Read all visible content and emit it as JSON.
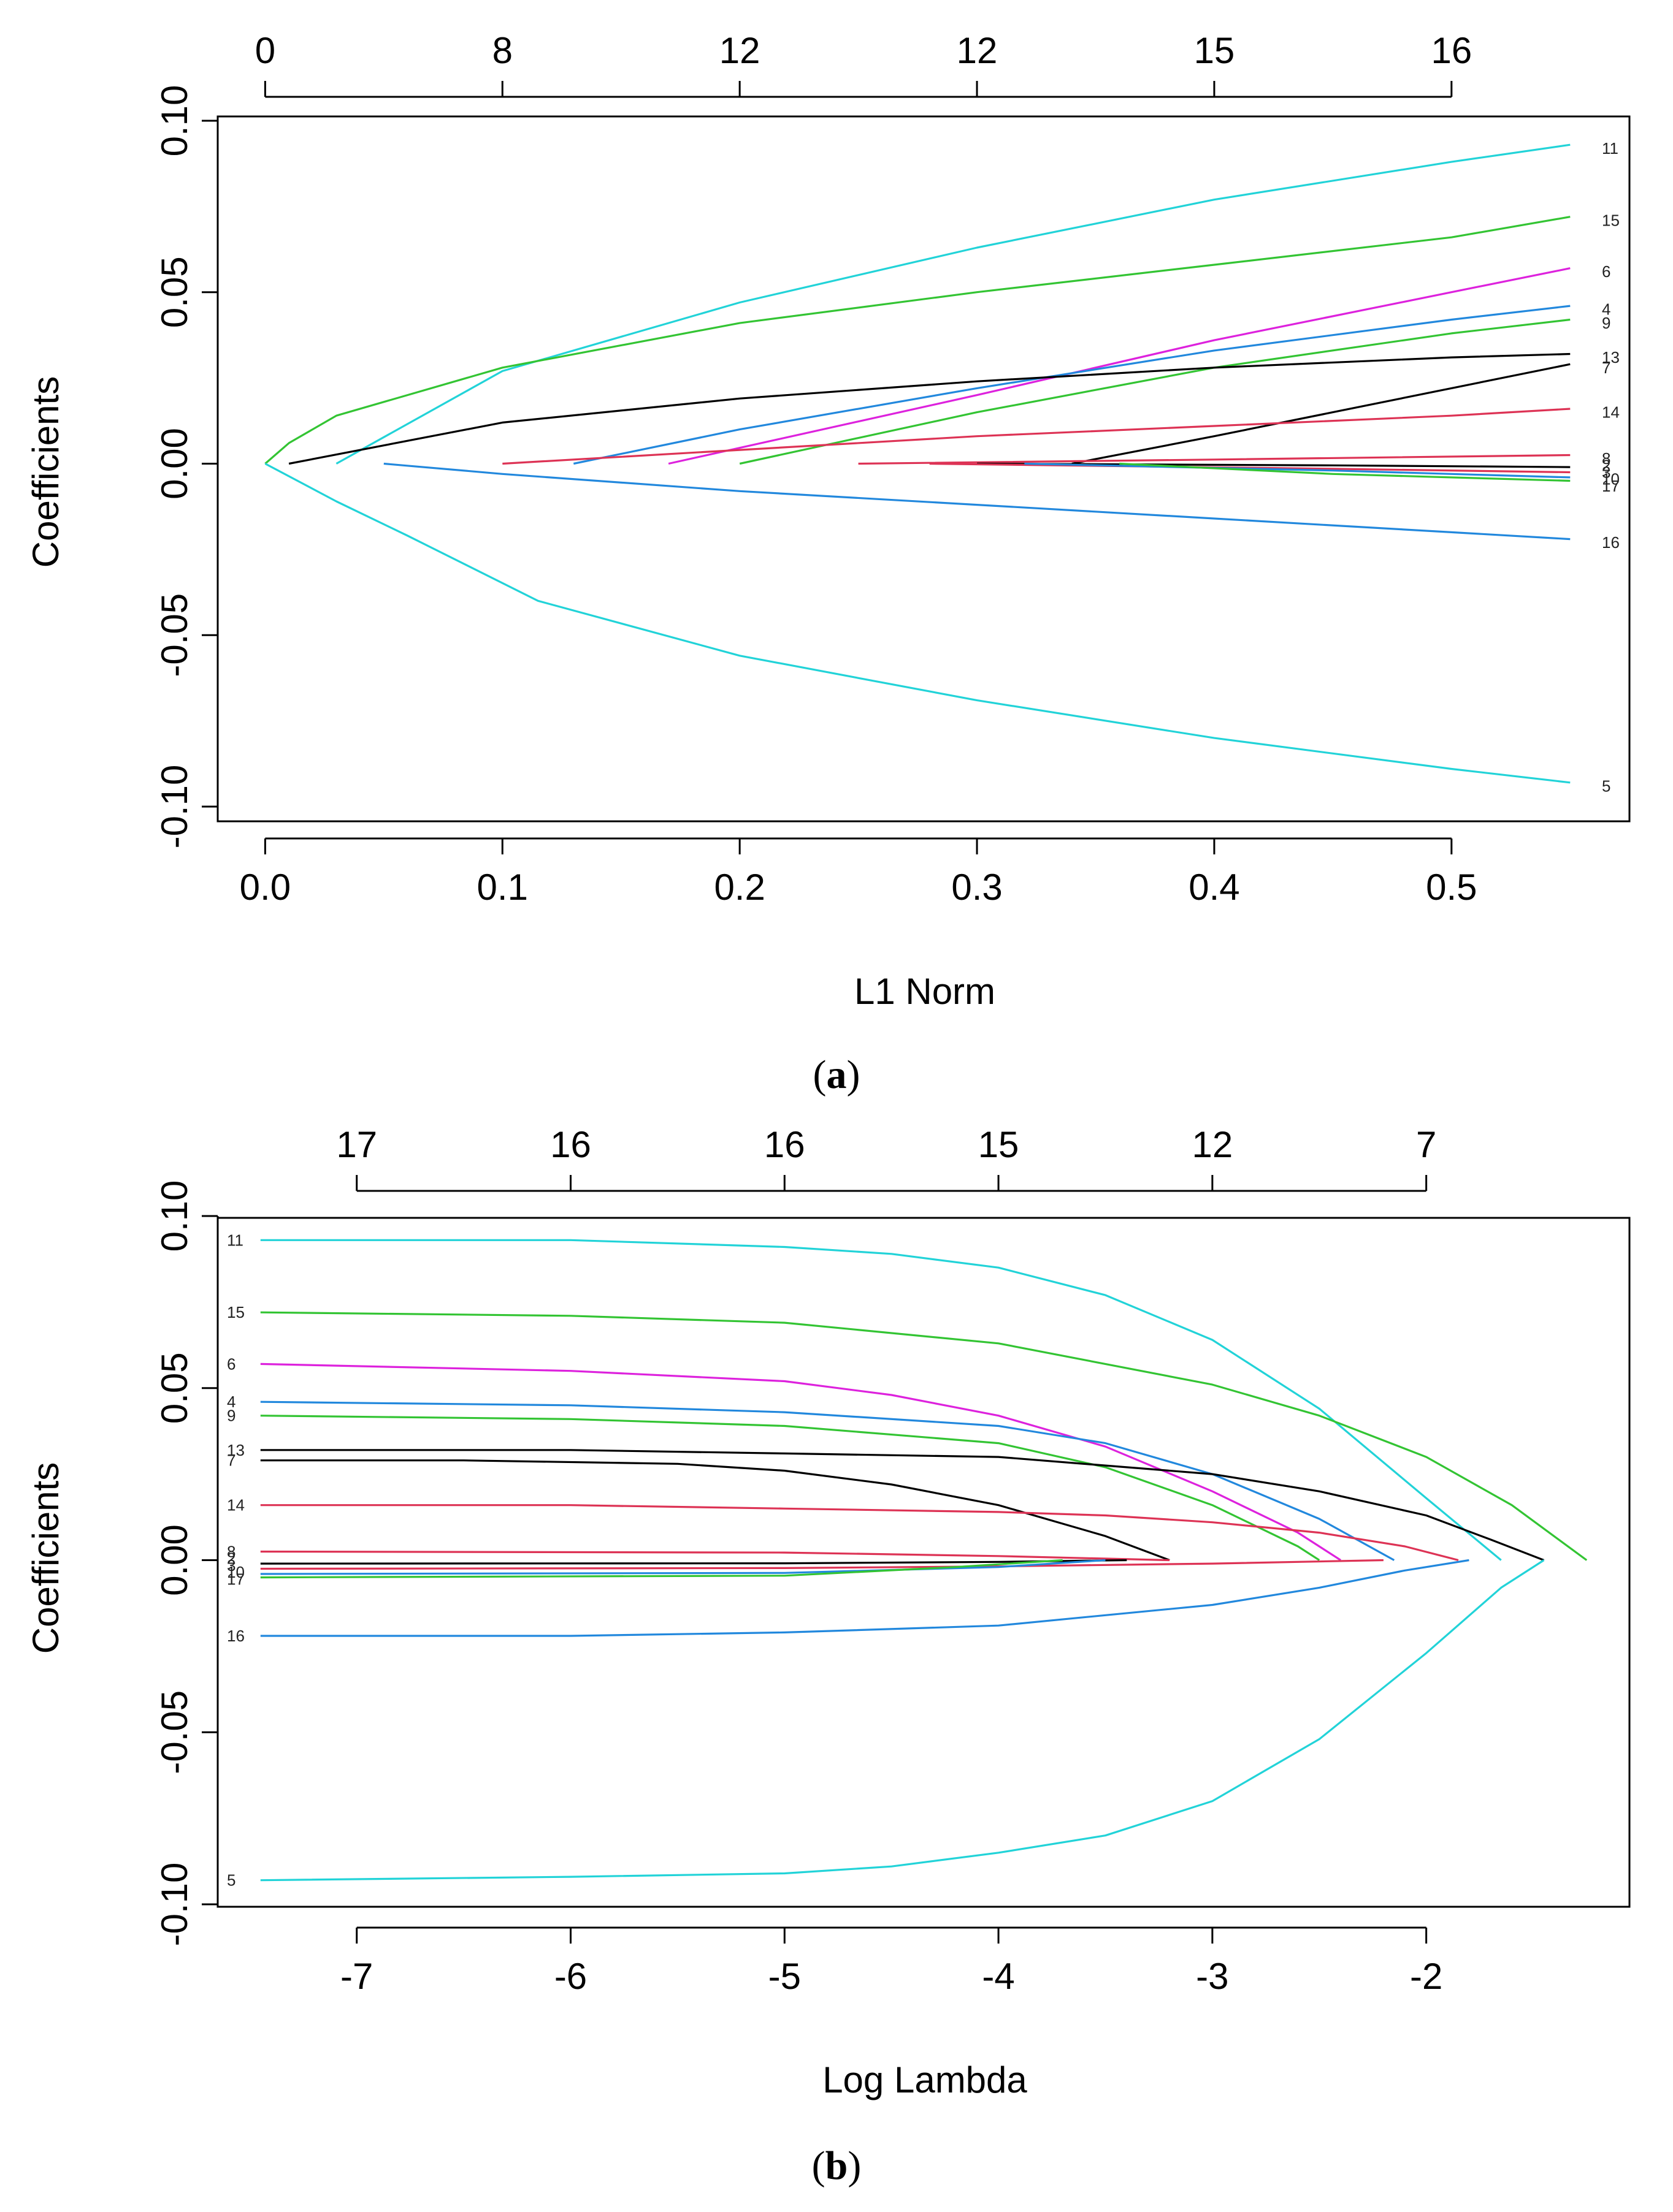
{
  "chart_data": [
    {
      "panel": "a",
      "caption": "(a)",
      "caption_letter": "a",
      "type": "line",
      "xlabel": "L1 Norm",
      "ylabel": "Coefficients",
      "xlim": [
        -0.02,
        0.575
      ],
      "ylim": [
        -0.1,
        0.1
      ],
      "x_ticks": [
        0.0,
        0.1,
        0.2,
        0.3,
        0.4,
        0.5
      ],
      "x_tick_labels": [
        "0.0",
        "0.1",
        "0.2",
        "0.3",
        "0.4",
        "0.5"
      ],
      "y_ticks": [
        0.1,
        0.05,
        0.0,
        -0.05,
        -0.1
      ],
      "y_tick_labels": [
        "0.10",
        "0.05",
        "0.00",
        "-0.05",
        "-0.10"
      ],
      "top_ticks": [
        0.0,
        0.1,
        0.2,
        0.3,
        0.4,
        0.5
      ],
      "top_tick_labels": [
        "0",
        "8",
        "12",
        "12",
        "15",
        "16"
      ],
      "labels_side": "right",
      "series": [
        {
          "name": "11",
          "color": "#22D3D8",
          "x": [
            0.03,
            0.1,
            0.2,
            0.3,
            0.4,
            0.5,
            0.55
          ],
          "y": [
            0.0,
            0.027,
            0.047,
            0.063,
            0.077,
            0.088,
            0.093
          ]
        },
        {
          "name": "15",
          "color": "#33C433",
          "x": [
            0.0,
            0.01,
            0.03,
            0.1,
            0.2,
            0.3,
            0.4,
            0.5,
            0.55
          ],
          "y": [
            0.0,
            0.006,
            0.014,
            0.028,
            0.041,
            0.05,
            0.058,
            0.066,
            0.072
          ]
        },
        {
          "name": "6",
          "color": "#DD22DD",
          "x": [
            0.17,
            0.3,
            0.4,
            0.5,
            0.55
          ],
          "y": [
            0.0,
            0.02,
            0.036,
            0.05,
            0.057
          ]
        },
        {
          "name": "4",
          "color": "#2288DD",
          "x": [
            0.13,
            0.2,
            0.3,
            0.4,
            0.5,
            0.55
          ],
          "y": [
            0.0,
            0.01,
            0.022,
            0.033,
            0.042,
            0.046
          ]
        },
        {
          "name": "9",
          "color": "#33C433",
          "x": [
            0.2,
            0.3,
            0.4,
            0.5,
            0.55
          ],
          "y": [
            0.0,
            0.015,
            0.028,
            0.038,
            0.042
          ]
        },
        {
          "name": "13",
          "color": "#000000",
          "x": [
            0.01,
            0.1,
            0.2,
            0.3,
            0.4,
            0.5,
            0.55
          ],
          "y": [
            0.0,
            0.012,
            0.019,
            0.024,
            0.028,
            0.031,
            0.032
          ]
        },
        {
          "name": "7",
          "color": "#000000",
          "x": [
            0.34,
            0.4,
            0.45,
            0.5,
            0.55
          ],
          "y": [
            0.0,
            0.008,
            0.015,
            0.022,
            0.029
          ]
        },
        {
          "name": "14",
          "color": "#DD3355",
          "x": [
            0.1,
            0.2,
            0.3,
            0.4,
            0.5,
            0.55
          ],
          "y": [
            0.0,
            0.004,
            0.008,
            0.011,
            0.014,
            0.016
          ]
        },
        {
          "name": "8",
          "color": "#DD3355",
          "x": [
            0.25,
            0.4,
            0.55
          ],
          "y": [
            0.0,
            0.0012,
            0.0025
          ]
        },
        {
          "name": "2",
          "color": "#000000",
          "x": [
            0.3,
            0.45,
            0.55
          ],
          "y": [
            0.0,
            -0.0005,
            -0.001
          ]
        },
        {
          "name": "3",
          "color": "#DD3355",
          "x": [
            0.28,
            0.45,
            0.55
          ],
          "y": [
            0.0,
            -0.0015,
            -0.0025
          ]
        },
        {
          "name": "10",
          "color": "#2288DD",
          "x": [
            0.32,
            0.45,
            0.55
          ],
          "y": [
            0.0,
            -0.002,
            -0.004
          ]
        },
        {
          "name": "17",
          "color": "#33C433",
          "x": [
            0.36,
            0.45,
            0.55
          ],
          "y": [
            0.0,
            -0.003,
            -0.005
          ]
        },
        {
          "name": "16",
          "color": "#2288DD",
          "x": [
            0.05,
            0.1,
            0.2,
            0.3,
            0.4,
            0.5,
            0.55
          ],
          "y": [
            0.0,
            -0.003,
            -0.008,
            -0.012,
            -0.016,
            -0.02,
            -0.022
          ]
        },
        {
          "name": "5",
          "color": "#22D3D8",
          "x": [
            0.0,
            0.03,
            0.06,
            0.115,
            0.2,
            0.3,
            0.4,
            0.5,
            0.55
          ],
          "y": [
            0.0,
            -0.011,
            -0.021,
            -0.04,
            -0.056,
            -0.069,
            -0.08,
            -0.089,
            -0.093
          ]
        }
      ],
      "label_marks": [
        {
          "name": "11",
          "y": 0.092
        },
        {
          "name": "15",
          "y": 0.071
        },
        {
          "name": "6",
          "y": 0.056
        },
        {
          "name": "4",
          "y": 0.045
        },
        {
          "name": "9",
          "y": 0.041
        },
        {
          "name": "13",
          "y": 0.031
        },
        {
          "name": "7",
          "y": 0.028
        },
        {
          "name": "14",
          "y": 0.015
        },
        {
          "name": "8",
          "y": 0.0015
        },
        {
          "name": "2",
          "y": -0.0005
        },
        {
          "name": "3",
          "y": -0.0025
        },
        {
          "name": "10",
          "y": -0.0045
        },
        {
          "name": "17",
          "y": -0.0065
        },
        {
          "name": "16",
          "y": -0.023
        },
        {
          "name": "5",
          "y": -0.094
        }
      ]
    },
    {
      "panel": "b",
      "caption": "(b)",
      "caption_letter": "b",
      "type": "line",
      "xlabel": "Log Lambda",
      "ylabel": "Coefficients",
      "xlim": [
        -7.65,
        -1.05
      ],
      "ylim": [
        -0.1,
        0.1
      ],
      "x_ticks": [
        -7,
        -6,
        -5,
        -4,
        -3,
        -2
      ],
      "x_tick_labels": [
        "-7",
        "-6",
        "-5",
        "-4",
        "-3",
        "-2"
      ],
      "y_ticks": [
        0.1,
        0.05,
        0.0,
        -0.05,
        -0.1
      ],
      "y_tick_labels": [
        "0.10",
        "0.05",
        "0.00",
        "-0.05",
        "-0.10"
      ],
      "top_ticks": [
        -7,
        -6,
        -5,
        -4,
        -3,
        -2
      ],
      "top_tick_labels": [
        "17",
        "16",
        "16",
        "15",
        "12",
        "7"
      ],
      "labels_side": "left",
      "series": [
        {
          "name": "11",
          "color": "#22D3D8",
          "x": [
            -7.45,
            -6,
            -5,
            -4.5,
            -4,
            -3.5,
            -3,
            -2.5,
            -2,
            -1.65
          ],
          "y": [
            0.093,
            0.093,
            0.091,
            0.089,
            0.085,
            0.077,
            0.064,
            0.044,
            0.018,
            0.0
          ]
        },
        {
          "name": "15",
          "color": "#33C433",
          "x": [
            -7.45,
            -6,
            -5,
            -4,
            -3,
            -2.5,
            -2,
            -1.6,
            -1.25
          ],
          "y": [
            0.072,
            0.071,
            0.069,
            0.063,
            0.051,
            0.042,
            0.03,
            0.016,
            0.0
          ]
        },
        {
          "name": "6",
          "color": "#DD22DD",
          "x": [
            -7.45,
            -6,
            -5,
            -4.5,
            -4,
            -3.5,
            -3,
            -2.6,
            -2.4
          ],
          "y": [
            0.057,
            0.055,
            0.052,
            0.048,
            0.042,
            0.033,
            0.02,
            0.008,
            0.0
          ]
        },
        {
          "name": "4",
          "color": "#2288DD",
          "x": [
            -7.45,
            -6,
            -5,
            -4,
            -3.5,
            -3,
            -2.5,
            -2.15
          ],
          "y": [
            0.046,
            0.045,
            0.043,
            0.039,
            0.034,
            0.025,
            0.012,
            0.0
          ]
        },
        {
          "name": "9",
          "color": "#33C433",
          "x": [
            -7.45,
            -6,
            -5,
            -4,
            -3.5,
            -3,
            -2.6,
            -2.5
          ],
          "y": [
            0.042,
            0.041,
            0.039,
            0.034,
            0.027,
            0.016,
            0.004,
            0.0
          ]
        },
        {
          "name": "13",
          "color": "#000000",
          "x": [
            -7.45,
            -6,
            -5,
            -4,
            -3,
            -2.5,
            -2,
            -1.7,
            -1.45
          ],
          "y": [
            0.032,
            0.032,
            0.031,
            0.03,
            0.025,
            0.02,
            0.013,
            0.006,
            0.0
          ]
        },
        {
          "name": "7",
          "color": "#000000",
          "x": [
            -7.45,
            -6.5,
            -5.5,
            -5,
            -4.5,
            -4,
            -3.5,
            -3.2
          ],
          "y": [
            0.029,
            0.029,
            0.028,
            0.026,
            0.022,
            0.016,
            0.007,
            0.0
          ]
        },
        {
          "name": "14",
          "color": "#DD3355",
          "x": [
            -7.45,
            -6,
            -5,
            -4,
            -3.5,
            -3,
            -2.5,
            -2.1,
            -1.85
          ],
          "y": [
            0.016,
            0.016,
            0.015,
            0.014,
            0.013,
            0.011,
            0.008,
            0.004,
            0.0
          ]
        },
        {
          "name": "8",
          "color": "#DD3355",
          "x": [
            -7.45,
            -5,
            -4,
            -3.2
          ],
          "y": [
            0.0025,
            0.0022,
            0.0012,
            0.0
          ]
        },
        {
          "name": "2",
          "color": "#000000",
          "x": [
            -7.45,
            -5,
            -4,
            -3.4
          ],
          "y": [
            -0.001,
            -0.0009,
            -0.0005,
            0.0
          ]
        },
        {
          "name": "3",
          "color": "#DD3355",
          "x": [
            -7.45,
            -5,
            -4,
            -3,
            -2.2
          ],
          "y": [
            -0.0025,
            -0.0023,
            -0.0018,
            -0.001,
            0.0
          ]
        },
        {
          "name": "10",
          "color": "#2288DD",
          "x": [
            -7.45,
            -5,
            -4,
            -3.5
          ],
          "y": [
            -0.004,
            -0.0037,
            -0.002,
            0.0
          ]
        },
        {
          "name": "17",
          "color": "#33C433",
          "x": [
            -7.45,
            -5,
            -4.2,
            -3.7
          ],
          "y": [
            -0.005,
            -0.0045,
            -0.002,
            0.0
          ]
        },
        {
          "name": "16",
          "color": "#2288DD",
          "x": [
            -7.45,
            -6,
            -5,
            -4,
            -3.5,
            -3,
            -2.5,
            -2.1,
            -1.8
          ],
          "y": [
            -0.022,
            -0.022,
            -0.021,
            -0.019,
            -0.016,
            -0.013,
            -0.008,
            -0.003,
            0.0
          ]
        },
        {
          "name": "5",
          "color": "#22D3D8",
          "x": [
            -7.45,
            -6,
            -5,
            -4.5,
            -4,
            -3.5,
            -3,
            -2.5,
            -2,
            -1.65,
            -1.45
          ],
          "y": [
            -0.093,
            -0.092,
            -0.091,
            -0.089,
            -0.085,
            -0.08,
            -0.07,
            -0.052,
            -0.027,
            -0.008,
            0.0
          ]
        }
      ],
      "label_marks": [
        {
          "name": "11",
          "y": 0.093
        },
        {
          "name": "15",
          "y": 0.072
        },
        {
          "name": "6",
          "y": 0.057
        },
        {
          "name": "4",
          "y": 0.046
        },
        {
          "name": "9",
          "y": 0.042
        },
        {
          "name": "13",
          "y": 0.032
        },
        {
          "name": "7",
          "y": 0.029
        },
        {
          "name": "14",
          "y": 0.016
        },
        {
          "name": "8",
          "y": 0.0025
        },
        {
          "name": "2",
          "y": 0.0005
        },
        {
          "name": "3",
          "y": -0.0015
        },
        {
          "name": "10",
          "y": -0.0035
        },
        {
          "name": "17",
          "y": -0.0055
        },
        {
          "name": "16",
          "y": -0.022
        },
        {
          "name": "5",
          "y": -0.093
        }
      ]
    }
  ]
}
